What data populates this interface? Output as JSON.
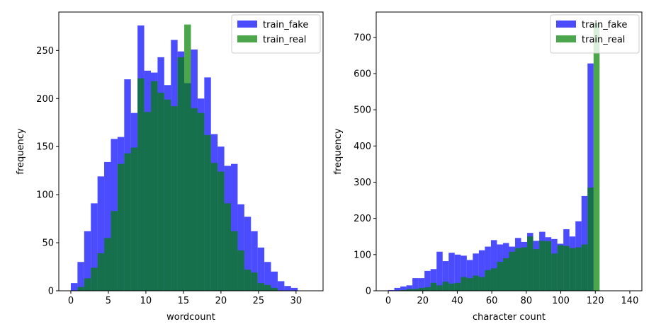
{
  "chart_data": [
    {
      "type": "bar",
      "xlabel": "wordcount",
      "ylabel": "frequency",
      "xlim": [
        -1.6,
        33.6
      ],
      "ylim": [
        0,
        290
      ],
      "xticks": [
        0,
        5,
        10,
        15,
        20,
        25,
        30
      ],
      "yticks": [
        0,
        50,
        100,
        150,
        200,
        250
      ],
      "legend_position": "upper-right",
      "bin_edges": [
        0,
        0.889,
        1.778,
        2.667,
        3.556,
        4.444,
        5.333,
        6.222,
        7.111,
        8,
        8.889,
        9.778,
        10.667,
        11.556,
        12.444,
        13.333,
        14.222,
        15.111,
        16,
        16.889,
        17.778,
        18.667,
        19.556,
        20.444,
        21.333,
        22.222,
        23.111,
        24,
        24.889,
        25.778,
        26.667,
        27.556,
        28.444,
        29.333,
        30.222,
        31.111,
        32
      ],
      "series": [
        {
          "name": "train_fake",
          "color": "#0000ff",
          "values": [
            8,
            30,
            62,
            91,
            119,
            134,
            158,
            160,
            220,
            185,
            276,
            229,
            227,
            243,
            214,
            261,
            249,
            216,
            251,
            200,
            222,
            163,
            150,
            130,
            132,
            90,
            77,
            62,
            45,
            30,
            20,
            10,
            5,
            3,
            0,
            0
          ]
        },
        {
          "name": "train_real",
          "color": "#008000",
          "values": [
            0,
            4,
            13,
            24,
            39,
            55,
            83,
            132,
            143,
            149,
            221,
            186,
            218,
            206,
            199,
            192,
            243,
            277,
            190,
            185,
            162,
            133,
            124,
            91,
            62,
            42,
            22,
            19,
            8,
            6,
            3,
            0,
            0,
            0,
            0,
            0
          ]
        }
      ]
    },
    {
      "type": "bar",
      "xlabel": "character count",
      "ylabel": "frequency",
      "xlim": [
        -7,
        147
      ],
      "ylim": [
        0,
        770
      ],
      "xticks": [
        0,
        20,
        40,
        60,
        80,
        100,
        120,
        140
      ],
      "yticks": [
        0,
        100,
        200,
        300,
        400,
        500,
        600,
        700
      ],
      "legend_position": "upper-right",
      "bin_edges": [
        0,
        3.5,
        7,
        10.5,
        14,
        17.5,
        21,
        24.5,
        28,
        31.5,
        35,
        38.5,
        42,
        45.5,
        49,
        52.5,
        56,
        59.5,
        63,
        66.5,
        70,
        73.5,
        77,
        80.5,
        84,
        87.5,
        91,
        94.5,
        98,
        101.5,
        105,
        108.5,
        112,
        115.5,
        119,
        122.5,
        126,
        129.5,
        133,
        136.5,
        140
      ],
      "series": [
        {
          "name": "train_fake",
          "color": "#0000ff",
          "values": [
            2,
            8,
            12,
            15,
            35,
            35,
            55,
            60,
            108,
            82,
            105,
            100,
            97,
            85,
            103,
            112,
            122,
            140,
            128,
            132,
            122,
            146,
            135,
            160,
            138,
            163,
            148,
            143,
            130,
            170,
            150,
            192,
            262,
            628,
            0,
            0,
            0,
            0,
            0,
            0
          ]
        },
        {
          "name": "train_real",
          "color": "#008000",
          "values": [
            0,
            0,
            2,
            5,
            5,
            8,
            10,
            22,
            15,
            25,
            20,
            22,
            38,
            35,
            42,
            38,
            57,
            62,
            80,
            90,
            108,
            118,
            120,
            150,
            115,
            138,
            137,
            103,
            126,
            124,
            118,
            120,
            128,
            285,
            740,
            0,
            0,
            0,
            0,
            0
          ]
        }
      ]
    }
  ]
}
